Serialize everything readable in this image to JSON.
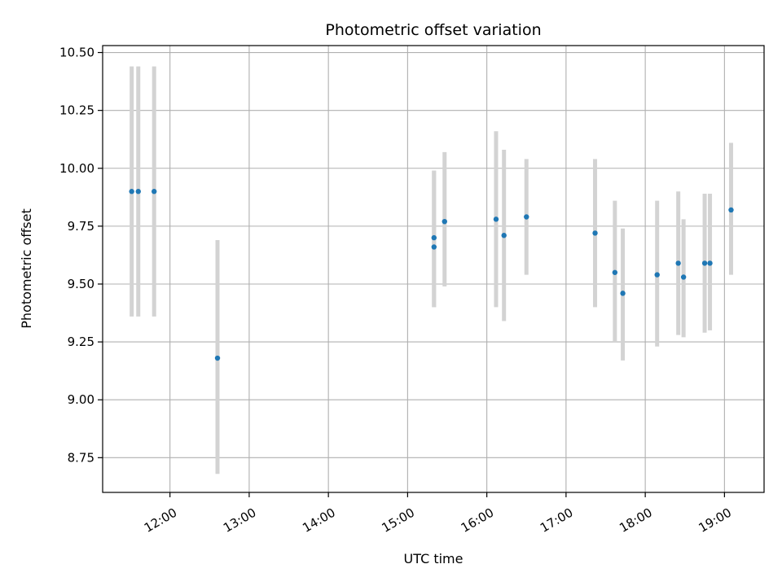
{
  "chart_data": {
    "type": "scatter",
    "title": "Photometric offset variation",
    "xlabel": "UTC time",
    "ylabel": "Photometric offset",
    "x_ticks": [
      "12:00",
      "13:00",
      "14:00",
      "15:00",
      "16:00",
      "17:00",
      "18:00",
      "19:00"
    ],
    "y_ticks": [
      "8.75",
      "9.00",
      "9.25",
      "9.50",
      "9.75",
      "10.00",
      "10.25",
      "10.50"
    ],
    "xlim": [
      "11:09",
      "19:30"
    ],
    "ylim": [
      8.6,
      10.53
    ],
    "grid": true,
    "colors": {
      "points": "#1f77b4",
      "errorbars": "#d3d3d3",
      "grid": "#b0b0b0"
    },
    "points": [
      {
        "x": "11:31",
        "y": 9.9,
        "err_low": 9.36,
        "err_high": 10.44
      },
      {
        "x": "11:36",
        "y": 9.9,
        "err_low": 9.36,
        "err_high": 10.44
      },
      {
        "x": "11:48",
        "y": 9.9,
        "err_low": 9.36,
        "err_high": 10.44
      },
      {
        "x": "12:36",
        "y": 9.18,
        "err_low": 8.68,
        "err_high": 9.69
      },
      {
        "x": "15:20",
        "y": 9.7,
        "err_low": 9.4,
        "err_high": 9.99
      },
      {
        "x": "15:20",
        "y": 9.66,
        "err_low": 9.4,
        "err_high": 9.99
      },
      {
        "x": "15:28",
        "y": 9.77,
        "err_low": 9.49,
        "err_high": 10.07
      },
      {
        "x": "16:07",
        "y": 9.78,
        "err_low": 9.4,
        "err_high": 10.16
      },
      {
        "x": "16:13",
        "y": 9.71,
        "err_low": 9.34,
        "err_high": 10.08
      },
      {
        "x": "16:30",
        "y": 9.79,
        "err_low": 9.54,
        "err_high": 10.04
      },
      {
        "x": "17:22",
        "y": 9.72,
        "err_low": 9.4,
        "err_high": 10.04
      },
      {
        "x": "17:37",
        "y": 9.55,
        "err_low": 9.25,
        "err_high": 9.86
      },
      {
        "x": "17:43",
        "y": 9.46,
        "err_low": 9.17,
        "err_high": 9.74
      },
      {
        "x": "18:09",
        "y": 9.54,
        "err_low": 9.23,
        "err_high": 9.86
      },
      {
        "x": "18:25",
        "y": 9.59,
        "err_low": 9.28,
        "err_high": 9.9
      },
      {
        "x": "18:29",
        "y": 9.53,
        "err_low": 9.27,
        "err_high": 9.78
      },
      {
        "x": "18:45",
        "y": 9.59,
        "err_low": 9.29,
        "err_high": 9.89
      },
      {
        "x": "18:49",
        "y": 9.59,
        "err_low": 9.3,
        "err_high": 9.89
      },
      {
        "x": "19:05",
        "y": 9.82,
        "err_low": 9.54,
        "err_high": 10.11
      }
    ]
  }
}
